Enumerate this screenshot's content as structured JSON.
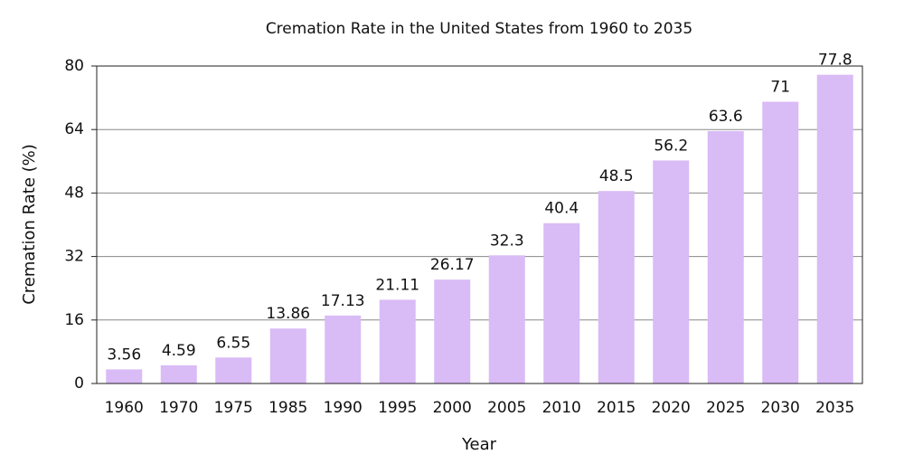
{
  "chart_data": {
    "type": "bar",
    "title": "Cremation Rate in the United States from 1960 to 2035",
    "x_label": "Year",
    "y_label": "Cremation Rate (%)",
    "categories": [
      "1960",
      "1970",
      "1975",
      "1985",
      "1990",
      "1995",
      "2000",
      "2005",
      "2010",
      "2015",
      "2020",
      "2025",
      "2030",
      "2035"
    ],
    "values": [
      3.56,
      4.59,
      6.55,
      13.86,
      17.13,
      21.11,
      26.17,
      32.3,
      40.4,
      48.5,
      56.2,
      63.6,
      71,
      77.8
    ],
    "color": "#d9bbf6",
    "ylim": [
      0,
      80
    ],
    "yticks": [
      0,
      16,
      32,
      48,
      64,
      80
    ],
    "grid": true
  }
}
